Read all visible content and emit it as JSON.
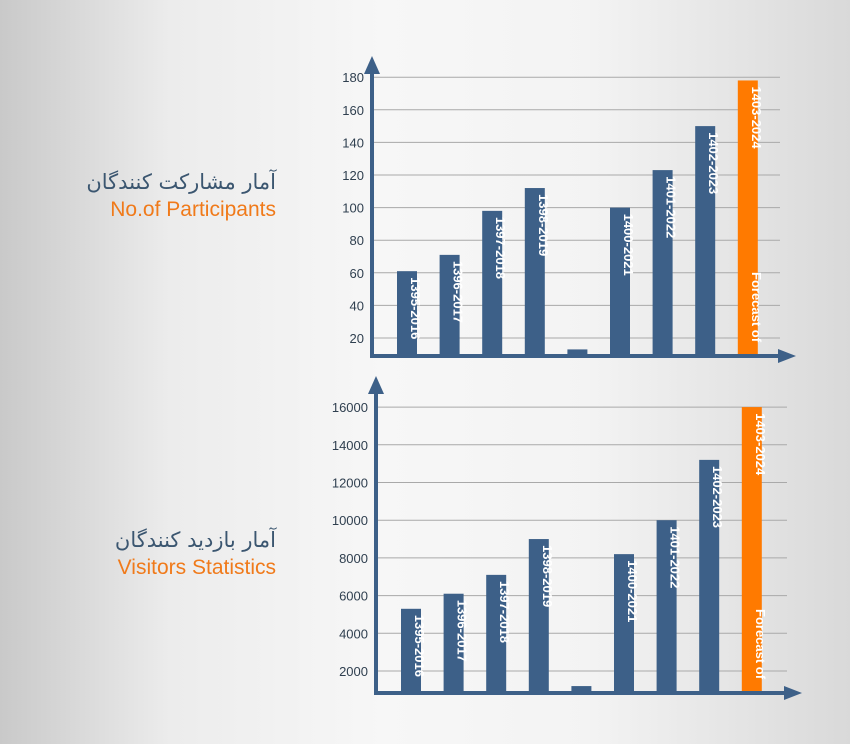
{
  "captions": [
    {
      "fa": "آمار مشارکت کنندگان",
      "en": "No.of Participants"
    },
    {
      "fa": "آمار بازدید کنندگان",
      "en": "Visitors Statistics"
    }
  ],
  "colors": {
    "bar": "#3d6088",
    "forecast": "#ff7a00",
    "axis": "#3d6088",
    "grid": "#a9a9a9"
  },
  "chart_data": [
    {
      "type": "bar",
      "title": "No.of Participants",
      "categories": [
        "1395-2016",
        "1396-2017",
        "1397-2018",
        "1398-2019",
        "",
        "1400-2021",
        "1401-2022",
        "1402-2023",
        "1403-2024"
      ],
      "values": [
        61,
        71,
        98,
        112,
        13,
        100,
        123,
        150,
        178
      ],
      "forecast_index": 8,
      "forecast_label": "Forecast of",
      "yticks": [
        20,
        40,
        60,
        80,
        100,
        120,
        140,
        160,
        180
      ],
      "ylim": [
        0,
        180
      ],
      "grid": true
    },
    {
      "type": "bar",
      "title": "Visitors Statistics",
      "categories": [
        "1395-2016",
        "1396-2017",
        "1397-2018",
        "1398-2019",
        "",
        "1400-2021",
        "1401-2022",
        "1402-2023",
        "1403-2024"
      ],
      "values": [
        5300,
        6100,
        7100,
        9000,
        1200,
        8200,
        10000,
        13200,
        16000
      ],
      "forecast_index": 8,
      "forecast_label": "Forecast of",
      "yticks": [
        2000,
        4000,
        6000,
        8000,
        10000,
        12000,
        14000,
        16000
      ],
      "ylim": [
        0,
        16000
      ],
      "grid": true
    }
  ]
}
